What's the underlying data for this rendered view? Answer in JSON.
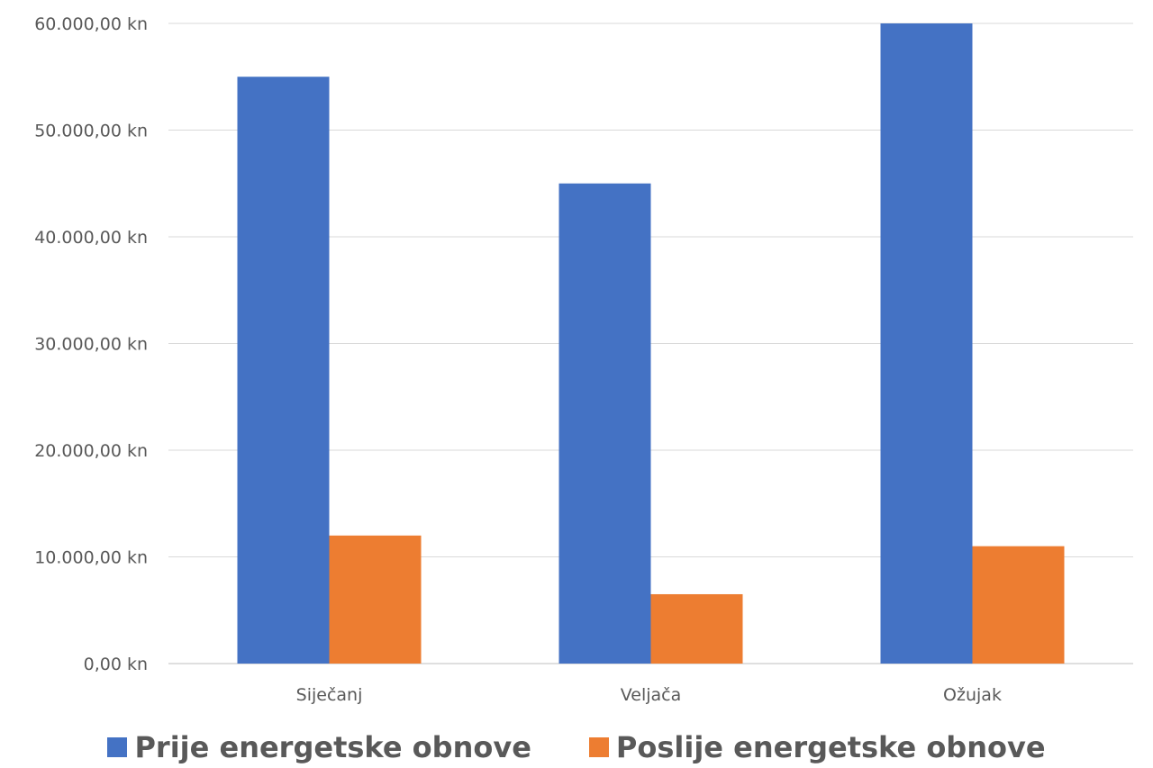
{
  "chart_data": {
    "type": "bar",
    "categories": [
      "Siječanj",
      "Veljača",
      "Ožujak"
    ],
    "series": [
      {
        "name": "Prije energetske obnove",
        "color": "#4472C4",
        "values": [
          55000,
          45000,
          60000
        ]
      },
      {
        "name": "Poslije energetske obnove",
        "color": "#ED7D31",
        "values": [
          12000,
          6500,
          11000
        ]
      }
    ],
    "y_ticks": [
      "0,00 kn",
      "10.000,00 kn",
      "20.000,00 kn",
      "30.000,00 kn",
      "40.000,00 kn",
      "50.000,00 kn",
      "60.000,00 kn"
    ],
    "ylim": [
      0,
      60000
    ],
    "grid": true,
    "legend_position": "bottom",
    "title": "",
    "xlabel": "",
    "ylabel": ""
  }
}
